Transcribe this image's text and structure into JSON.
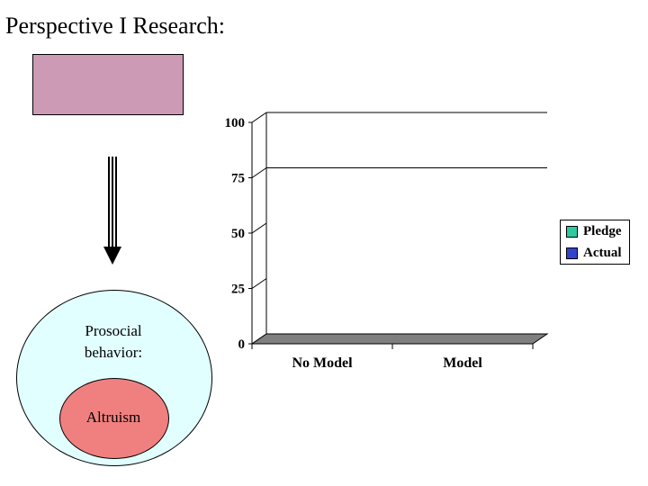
{
  "slide": {
    "title": "Perspective I Research:",
    "colors": {
      "box": "#cc9ab5",
      "outer_circle": "#e2ffff",
      "inner_circle": "#f08080"
    },
    "outer_label_line1": "Prosocial",
    "outer_label_line2": "behavior:",
    "inner_label": "Altruism"
  },
  "chart_data": {
    "type": "bar",
    "categories": [
      "No Model",
      "Model"
    ],
    "series": [
      {
        "name": "Pledge",
        "values": [
          0,
          0
        ],
        "color": "#2fc9a0"
      },
      {
        "name": "Actual",
        "values": [
          0,
          0
        ],
        "color": "#3344cc"
      }
    ],
    "yticks": [
      0,
      25,
      50,
      75,
      100
    ],
    "ylim": [
      0,
      100
    ],
    "gridlines": [
      75,
      100
    ],
    "legend_position": "right",
    "style": "3d"
  }
}
